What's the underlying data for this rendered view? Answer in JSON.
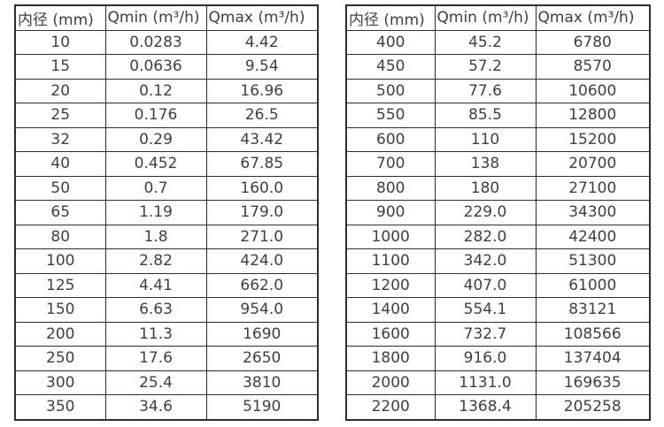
{
  "colors": {
    "background": "#ffffff",
    "border": "#2d2d2d",
    "text": "#3f3f3f"
  },
  "chart_data": [
    {
      "type": "table",
      "title": "",
      "headers": [
        "内径 (mm)",
        "Qmin (m³/h)",
        "Qmax (m³/h)"
      ],
      "rows": [
        [
          "10",
          "0.0283",
          "4.42"
        ],
        [
          "15",
          "0.0636",
          "9.54"
        ],
        [
          "20",
          "0.12",
          "16.96"
        ],
        [
          "25",
          "0.176",
          "26.5"
        ],
        [
          "32",
          "0.29",
          "43.42"
        ],
        [
          "40",
          "0.452",
          "67.85"
        ],
        [
          "50",
          "0.7",
          "160.0"
        ],
        [
          "65",
          "1.19",
          "179.0"
        ],
        [
          "80",
          "1.8",
          "271.0"
        ],
        [
          "100",
          "2.82",
          "424.0"
        ],
        [
          "125",
          "4.41",
          "662.0"
        ],
        [
          "150",
          "6.63",
          "954.0"
        ],
        [
          "200",
          "11.3",
          "1690"
        ],
        [
          "250",
          "17.6",
          "2650"
        ],
        [
          "300",
          "25.4",
          "3810"
        ],
        [
          "350",
          "34.6",
          "5190"
        ]
      ]
    },
    {
      "type": "table",
      "title": "",
      "headers": [
        "内径 (mm)",
        "Qmin (m³/h)",
        "Qmax (m³/h)"
      ],
      "rows": [
        [
          "400",
          "45.2",
          "6780"
        ],
        [
          "450",
          "57.2",
          "8570"
        ],
        [
          "500",
          "77.6",
          "10600"
        ],
        [
          "550",
          "85.5",
          "12800"
        ],
        [
          "600",
          "110",
          "15200"
        ],
        [
          "700",
          "138",
          "20700"
        ],
        [
          "800",
          "180",
          "27100"
        ],
        [
          "900",
          "229.0",
          "34300"
        ],
        [
          "1000",
          "282.0",
          "42400"
        ],
        [
          "1100",
          "342.0",
          "51300"
        ],
        [
          "1200",
          "407.0",
          "61000"
        ],
        [
          "1400",
          "554.1",
          "83121"
        ],
        [
          "1600",
          "732.7",
          "108566"
        ],
        [
          "1800",
          "916.0",
          "137404"
        ],
        [
          "2000",
          "1131.0",
          "169635"
        ],
        [
          "2200",
          "1368.4",
          "205258"
        ]
      ]
    }
  ]
}
